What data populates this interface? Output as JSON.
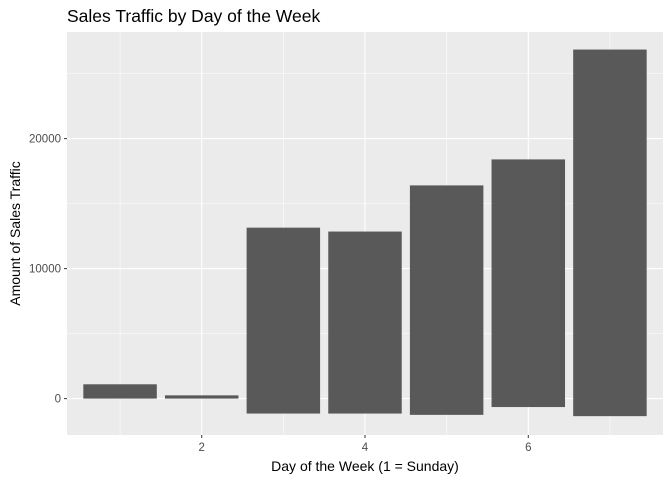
{
  "chart_data": {
    "type": "bar",
    "title": "Sales Traffic by Day of the Week",
    "xlabel": "Day of the Week (1 = Sunday)",
    "ylabel": "Amount of Sales Traffic",
    "categories": [
      1,
      2,
      3,
      4,
      5,
      6,
      7
    ],
    "bars": [
      {
        "x": 1,
        "ymin": 0,
        "ymax": 1100
      },
      {
        "x": 2,
        "ymin": 0,
        "ymax": 250
      },
      {
        "x": 3,
        "ymin": -1150,
        "ymax": 13150
      },
      {
        "x": 4,
        "ymin": -1150,
        "ymax": 12850
      },
      {
        "x": 5,
        "ymin": -1250,
        "ymax": 16400
      },
      {
        "x": 6,
        "ymin": -650,
        "ymax": 18400
      },
      {
        "x": 7,
        "ymin": -1350,
        "ymax": 26850
      }
    ],
    "xlim": [
      0.35,
      7.65
    ],
    "ylim": [
      -2800,
      28200
    ],
    "x_ticks": [
      {
        "value": 2,
        "label": "2"
      },
      {
        "value": 4,
        "label": "4"
      },
      {
        "value": 6,
        "label": "6"
      }
    ],
    "y_ticks": [
      {
        "value": 0,
        "label": "0"
      },
      {
        "value": 10000,
        "label": "10000"
      },
      {
        "value": 20000,
        "label": "20000"
      }
    ],
    "grid": true,
    "legend": "none",
    "colors": {
      "panel_background": "#EBEBEB",
      "grid_major": "#FFFFFF",
      "bar_fill": "#595959",
      "tick_text": "#4D4D4D",
      "tick_mark": "#333333"
    }
  }
}
